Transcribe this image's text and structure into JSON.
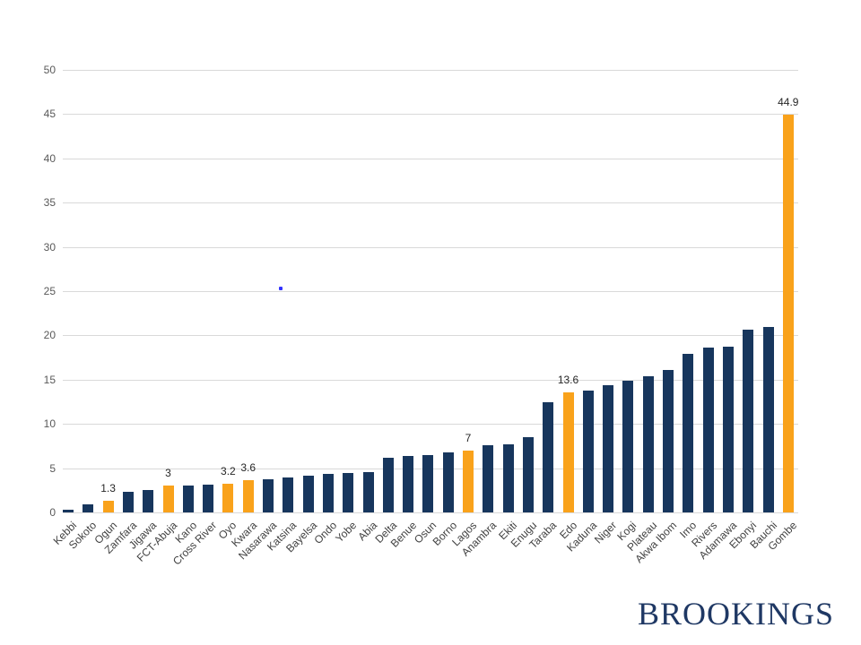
{
  "footer": {
    "logo_text": "BROOKINGS"
  },
  "chart_data": {
    "type": "bar",
    "title": "",
    "xlabel": "",
    "ylabel": "",
    "ylim": [
      0,
      50
    ],
    "yticks": [
      0,
      5,
      10,
      15,
      20,
      25,
      30,
      35,
      40,
      45,
      50
    ],
    "grid": true,
    "legend": false,
    "colors": {
      "bar_default": "#17365d",
      "bar_highlight": "#f9a21b",
      "gridline": "#d9d9d9",
      "axis_text": "#595959",
      "category_text": "#404040",
      "data_label_text": "#262626"
    },
    "bars": [
      {
        "name": "Kebbi",
        "value": 0.3,
        "highlighted": false,
        "label": null
      },
      {
        "name": "Sokoto",
        "value": 0.9,
        "highlighted": false,
        "label": null
      },
      {
        "name": "Ogun",
        "value": 1.3,
        "highlighted": true,
        "label": "1.3"
      },
      {
        "name": "Zamfara",
        "value": 2.3,
        "highlighted": false,
        "label": null
      },
      {
        "name": "Jigawa",
        "value": 2.5,
        "highlighted": false,
        "label": null
      },
      {
        "name": "FCT-Abuja",
        "value": 3,
        "highlighted": true,
        "label": "3"
      },
      {
        "name": "Kano",
        "value": 3.0,
        "highlighted": false,
        "label": null
      },
      {
        "name": "Cross River",
        "value": 3.1,
        "highlighted": false,
        "label": null
      },
      {
        "name": "Oyo",
        "value": 3.2,
        "highlighted": true,
        "label": "3.2"
      },
      {
        "name": "Kwara",
        "value": 3.6,
        "highlighted": true,
        "label": "3.6"
      },
      {
        "name": "Nasarawa",
        "value": 3.7,
        "highlighted": false,
        "label": null
      },
      {
        "name": "Katsina",
        "value": 3.9,
        "highlighted": false,
        "label": null
      },
      {
        "name": "Bayelsa",
        "value": 4.2,
        "highlighted": false,
        "label": null
      },
      {
        "name": "Ondo",
        "value": 4.4,
        "highlighted": false,
        "label": null
      },
      {
        "name": "Yobe",
        "value": 4.5,
        "highlighted": false,
        "label": null
      },
      {
        "name": "Abia",
        "value": 4.6,
        "highlighted": false,
        "label": null
      },
      {
        "name": "Delta",
        "value": 6.2,
        "highlighted": false,
        "label": null
      },
      {
        "name": "Benue",
        "value": 6.4,
        "highlighted": false,
        "label": null
      },
      {
        "name": "Osun",
        "value": 6.5,
        "highlighted": false,
        "label": null
      },
      {
        "name": "Borno",
        "value": 6.8,
        "highlighted": false,
        "label": null
      },
      {
        "name": "Lagos",
        "value": 7,
        "highlighted": true,
        "label": "7"
      },
      {
        "name": "Anambra",
        "value": 7.6,
        "highlighted": false,
        "label": null
      },
      {
        "name": "Ekiti",
        "value": 7.7,
        "highlighted": false,
        "label": null
      },
      {
        "name": "Enugu",
        "value": 8.5,
        "highlighted": false,
        "label": null
      },
      {
        "name": "Taraba",
        "value": 12.4,
        "highlighted": false,
        "label": null
      },
      {
        "name": "Edo",
        "value": 13.6,
        "highlighted": true,
        "label": "13.6"
      },
      {
        "name": "Kaduna",
        "value": 13.8,
        "highlighted": false,
        "label": null
      },
      {
        "name": "Niger",
        "value": 14.4,
        "highlighted": false,
        "label": null
      },
      {
        "name": "Kogi",
        "value": 14.9,
        "highlighted": false,
        "label": null
      },
      {
        "name": "Plateau",
        "value": 15.4,
        "highlighted": false,
        "label": null
      },
      {
        "name": "Akwa Ibom",
        "value": 16.1,
        "highlighted": false,
        "label": null
      },
      {
        "name": "Imo",
        "value": 17.9,
        "highlighted": false,
        "label": null
      },
      {
        "name": "Rivers",
        "value": 18.6,
        "highlighted": false,
        "label": null
      },
      {
        "name": "Adamawa",
        "value": 18.7,
        "highlighted": false,
        "label": null
      },
      {
        "name": "Ebonyi",
        "value": 20.6,
        "highlighted": false,
        "label": null
      },
      {
        "name": "Bauchi",
        "value": 21.0,
        "highlighted": false,
        "label": null
      },
      {
        "name": "Gombe",
        "value": 44.9,
        "highlighted": true,
        "label": "44.9"
      }
    ]
  }
}
